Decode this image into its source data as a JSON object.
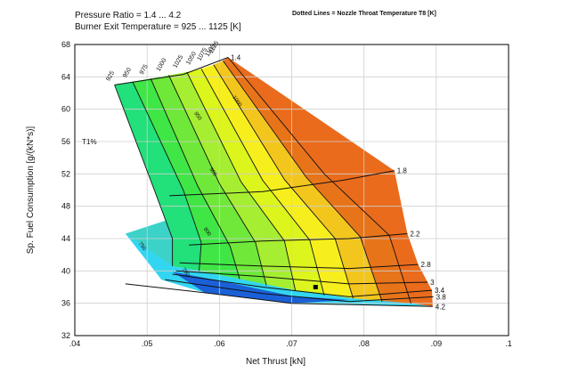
{
  "header": {
    "title1": "Pressure Ratio = 1.4 ... 4.2",
    "title2": "Burner Exit Temperature = 925 ... 1125 [K]",
    "note": "Dotted Lines = Nozzle Throat Temperature T8 [K]"
  },
  "chart_data": {
    "type": "area",
    "title": "Pressure Ratio = 1.4 ... 4.2",
    "subtitle": "Burner Exit Temperature = 925 ... 1125 [K]",
    "annotation": "Dotted Lines = Nozzle Throat Temperature T8 [K]",
    "xlabel": "Net Thrust [kN]",
    "ylabel": "Sp. Fuel Consumption [g/(kN*s)]",
    "xlim": [
      0.04,
      0.1
    ],
    "ylim": [
      32,
      68
    ],
    "x_ticks": [
      0.04,
      0.05,
      0.06,
      0.07,
      0.08,
      0.09,
      0.1
    ],
    "x_tick_labels": [
      ".04",
      ".05",
      ".06",
      ".07",
      ".08",
      ".09",
      ".1"
    ],
    "y_ticks": [
      32,
      36,
      40,
      44,
      48,
      52,
      56,
      60,
      64,
      68
    ],
    "y_tick_labels": [
      "32",
      "36",
      "40",
      "44",
      "48",
      "52",
      "56",
      "60",
      "64",
      "68"
    ],
    "grid": true,
    "efficiency_label": {
      "text": "T1%",
      "x": 0.041,
      "y": 56
    },
    "pressure_ratio_lines": [
      {
        "label": "1.4",
        "points": [
          [
            0.0455,
            63.0
          ],
          [
            0.055,
            64.3
          ],
          [
            0.0612,
            66.4
          ]
        ]
      },
      {
        "label": "1.8",
        "points": [
          [
            0.0531,
            49.3
          ],
          [
            0.066,
            49.8
          ],
          [
            0.077,
            51.2
          ],
          [
            0.0842,
            52.4
          ]
        ]
      },
      {
        "label": "2.2",
        "points": [
          [
            0.0558,
            43.2
          ],
          [
            0.066,
            43.7
          ],
          [
            0.078,
            44.0
          ],
          [
            0.086,
            44.6
          ]
        ]
      },
      {
        "label": "2.8",
        "points": [
          [
            0.0545,
            41.0
          ],
          [
            0.066,
            40.6
          ],
          [
            0.078,
            40.3
          ],
          [
            0.0875,
            40.8
          ]
        ]
      },
      {
        "label": "3",
        "points": [
          [
            0.054,
            40.0
          ],
          [
            0.066,
            39.3
          ],
          [
            0.078,
            38.4
          ],
          [
            0.0888,
            38.6
          ]
        ]
      },
      {
        "label": "3.4",
        "points": [
          [
            0.0535,
            39.6
          ],
          [
            0.066,
            38.0
          ],
          [
            0.078,
            36.8
          ],
          [
            0.0894,
            37.6
          ]
        ]
      },
      {
        "label": "3.8",
        "points": [
          [
            0.0525,
            38.9
          ],
          [
            0.066,
            37.2
          ],
          [
            0.078,
            36.2
          ],
          [
            0.0896,
            36.8
          ]
        ]
      },
      {
        "label": "4.2",
        "points": [
          [
            0.047,
            38.4
          ],
          [
            0.058,
            37.3
          ],
          [
            0.07,
            36.0
          ],
          [
            0.0895,
            35.6
          ]
        ]
      }
    ],
    "temperature_lines": [
      {
        "label": "925",
        "points": [
          [
            0.0455,
            63.0
          ],
          [
            0.051,
            50.0
          ],
          [
            0.0535,
            44.0
          ],
          [
            0.0535,
            40.6
          ]
        ]
      },
      {
        "label": "950",
        "points": [
          [
            0.048,
            63.4
          ],
          [
            0.055,
            50.0
          ],
          [
            0.0575,
            43.5
          ],
          [
            0.0572,
            40.0
          ]
        ]
      },
      {
        "label": "975",
        "points": [
          [
            0.0505,
            63.8
          ],
          [
            0.057,
            50.5
          ],
          [
            0.0615,
            43.0
          ],
          [
            0.0628,
            39.0
          ]
        ]
      },
      {
        "label": "1000",
        "points": [
          [
            0.053,
            64.2
          ],
          [
            0.06,
            50.8
          ],
          [
            0.065,
            43.5
          ],
          [
            0.0665,
            38.2
          ]
        ]
      },
      {
        "label": "1025",
        "points": [
          [
            0.0555,
            64.6
          ],
          [
            0.063,
            51.0
          ],
          [
            0.069,
            43.7
          ],
          [
            0.0705,
            37.6
          ]
        ]
      },
      {
        "label": "1050",
        "points": [
          [
            0.0575,
            65.0
          ],
          [
            0.066,
            51.2
          ],
          [
            0.0725,
            43.8
          ],
          [
            0.0745,
            37.0
          ]
        ]
      },
      {
        "label": "1075",
        "points": [
          [
            0.0592,
            65.5
          ],
          [
            0.069,
            51.3
          ],
          [
            0.076,
            44.0
          ],
          [
            0.0785,
            36.6
          ]
        ]
      },
      {
        "label": "1100",
        "points": [
          [
            0.0605,
            66.0
          ],
          [
            0.072,
            51.6
          ],
          [
            0.0795,
            44.2
          ],
          [
            0.0825,
            36.2
          ]
        ]
      },
      {
        "label": "1125",
        "points": [
          [
            0.0612,
            66.4
          ],
          [
            0.0745,
            52.0
          ],
          [
            0.0835,
            44.4
          ],
          [
            0.0865,
            36.0
          ]
        ]
      }
    ],
    "nozzle_temperature_contours": [
      {
        "label": "1000",
        "x": 0.0618,
        "y": 61.5
      },
      {
        "label": "950",
        "x": 0.0565,
        "y": 59.5
      },
      {
        "label": "900",
        "x": 0.0586,
        "y": 52.6
      },
      {
        "label": "800",
        "x": 0.0578,
        "y": 45.2
      },
      {
        "label": "750",
        "x": 0.0488,
        "y": 43.4
      },
      {
        "label": "700",
        "x": 0.0548,
        "y": 40.2
      }
    ],
    "marker": {
      "x": 0.0733,
      "y": 38.0
    }
  }
}
